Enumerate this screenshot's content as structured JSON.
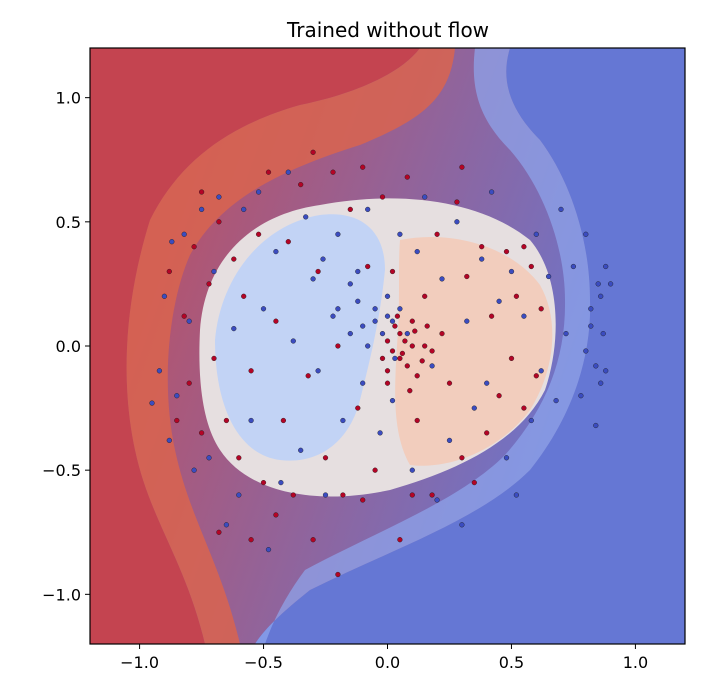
{
  "chart_data": {
    "type": "scatter",
    "title": "Trained without flow",
    "xlabel": "",
    "ylabel": "",
    "xlim": [
      -1.2,
      1.2
    ],
    "ylim": [
      -1.2,
      1.2
    ],
    "grid": false,
    "legend": "none",
    "x_ticks": [
      -1.0,
      -0.5,
      0.0,
      0.5,
      1.0
    ],
    "x_tick_labels": [
      "−1.0",
      "−0.5",
      "0.0",
      "0.5",
      "1.0"
    ],
    "y_ticks": [
      -1.0,
      -0.5,
      0.0,
      0.5,
      1.0
    ],
    "y_tick_labels": [
      "−1.0",
      "−0.5",
      "0.0",
      "0.5",
      "1.0"
    ],
    "background": {
      "kind": "filled-contour",
      "colormap": "coolwarm",
      "alpha": 0.8,
      "description": "decision probability surface: red region on left / upper-left, blue region on right / lower-right"
    },
    "series": [
      {
        "class": 0,
        "color": "#3b4cc0",
        "points": [
          [
            -0.95,
            -0.23
          ],
          [
            -0.92,
            -0.1
          ],
          [
            -0.9,
            0.2
          ],
          [
            -0.88,
            -0.38
          ],
          [
            -0.87,
            0.42
          ],
          [
            -0.85,
            -0.2
          ],
          [
            -0.82,
            0.45
          ],
          [
            -0.8,
            0.1
          ],
          [
            -0.78,
            -0.5
          ],
          [
            -0.75,
            0.55
          ],
          [
            -0.72,
            -0.45
          ],
          [
            -0.7,
            0.3
          ],
          [
            -0.68,
            0.6
          ],
          [
            -0.65,
            -0.72
          ],
          [
            -0.62,
            0.07
          ],
          [
            -0.6,
            -0.6
          ],
          [
            -0.58,
            0.55
          ],
          [
            -0.55,
            -0.3
          ],
          [
            -0.52,
            0.62
          ],
          [
            -0.5,
            0.15
          ],
          [
            -0.48,
            -0.82
          ],
          [
            -0.45,
            0.38
          ],
          [
            -0.43,
            -0.55
          ],
          [
            -0.4,
            0.7
          ],
          [
            -0.38,
            0.02
          ],
          [
            -0.35,
            -0.42
          ],
          [
            -0.33,
            0.52
          ],
          [
            -0.3,
            0.27
          ],
          [
            -0.28,
            -0.1
          ],
          [
            -0.26,
            0.35
          ],
          [
            -0.25,
            -0.6
          ],
          [
            -0.22,
            0.12
          ],
          [
            -0.2,
            0.45
          ],
          [
            -0.18,
            -0.3
          ],
          [
            -0.15,
            0.05
          ],
          [
            -0.12,
            0.3
          ],
          [
            -0.1,
            -0.15
          ],
          [
            -0.08,
            0.55
          ],
          [
            -0.05,
            0.1
          ],
          [
            -0.03,
            -0.35
          ],
          [
            0.0,
            0.2
          ],
          [
            0.02,
            -0.22
          ],
          [
            0.05,
            0.45
          ],
          [
            0.08,
            0.05
          ],
          [
            0.1,
            -0.5
          ],
          [
            0.12,
            0.38
          ],
          [
            0.15,
            0.6
          ],
          [
            0.18,
            -0.08
          ],
          [
            0.2,
            -0.62
          ],
          [
            0.22,
            0.27
          ],
          [
            0.25,
            -0.38
          ],
          [
            0.28,
            0.5
          ],
          [
            0.3,
            -0.72
          ],
          [
            0.32,
            0.1
          ],
          [
            0.35,
            -0.25
          ],
          [
            0.38,
            0.35
          ],
          [
            0.4,
            -0.15
          ],
          [
            0.42,
            0.62
          ],
          [
            0.45,
            0.18
          ],
          [
            0.48,
            -0.45
          ],
          [
            0.5,
            0.3
          ],
          [
            0.52,
            -0.6
          ],
          [
            0.55,
            0.12
          ],
          [
            0.58,
            -0.3
          ],
          [
            0.6,
            0.45
          ],
          [
            0.62,
            -0.1
          ],
          [
            0.65,
            0.28
          ],
          [
            0.68,
            -0.22
          ],
          [
            0.7,
            0.55
          ],
          [
            0.72,
            0.05
          ],
          [
            0.75,
            0.32
          ],
          [
            0.78,
            -0.2
          ],
          [
            0.8,
            0.45
          ],
          [
            0.82,
            0.15
          ],
          [
            0.84,
            -0.08
          ],
          [
            0.86,
            0.2
          ],
          [
            0.88,
            -0.1
          ],
          [
            0.9,
            0.25
          ],
          [
            0.88,
            0.32
          ],
          [
            0.87,
            0.05
          ],
          [
            0.85,
            0.25
          ],
          [
            0.86,
            -0.15
          ],
          [
            0.84,
            -0.32
          ],
          [
            0.82,
            0.08
          ],
          [
            0.8,
            -0.02
          ],
          [
            -0.2,
            0.15
          ],
          [
            -0.15,
            0.25
          ],
          [
            -0.1,
            0.08
          ],
          [
            -0.05,
            0.15
          ],
          [
            0.02,
            0.1
          ],
          [
            0.05,
            0.15
          ],
          [
            0.0,
            0.12
          ],
          [
            -0.08,
            0.0
          ],
          [
            -0.12,
            0.18
          ],
          [
            0.03,
            -0.05
          ],
          [
            -0.02,
            0.05
          ]
        ]
      },
      {
        "class": 1,
        "color": "#b40426",
        "points": [
          [
            -0.82,
            0.12
          ],
          [
            -0.8,
            -0.15
          ],
          [
            -0.78,
            0.4
          ],
          [
            -0.75,
            -0.35
          ],
          [
            -0.72,
            0.25
          ],
          [
            -0.7,
            -0.05
          ],
          [
            -0.68,
            0.5
          ],
          [
            -0.65,
            -0.3
          ],
          [
            -0.62,
            0.35
          ],
          [
            -0.6,
            -0.45
          ],
          [
            -0.58,
            0.2
          ],
          [
            -0.55,
            -0.1
          ],
          [
            -0.52,
            0.45
          ],
          [
            -0.5,
            -0.55
          ],
          [
            -0.48,
            0.7
          ],
          [
            -0.45,
            0.1
          ],
          [
            -0.42,
            -0.3
          ],
          [
            -0.4,
            0.42
          ],
          [
            -0.38,
            -0.6
          ],
          [
            -0.35,
            0.65
          ],
          [
            -0.32,
            -0.12
          ],
          [
            -0.3,
            0.78
          ],
          [
            -0.28,
            0.3
          ],
          [
            -0.25,
            -0.45
          ],
          [
            -0.22,
            0.7
          ],
          [
            -0.2,
            0.0
          ],
          [
            -0.18,
            -0.6
          ],
          [
            -0.15,
            0.55
          ],
          [
            -0.12,
            -0.25
          ],
          [
            -0.1,
            0.72
          ],
          [
            -0.08,
            0.32
          ],
          [
            -0.05,
            -0.5
          ],
          [
            -0.02,
            0.6
          ],
          [
            0.0,
            -0.1
          ],
          [
            0.02,
            0.3
          ],
          [
            0.05,
            -0.05
          ],
          [
            0.08,
            0.68
          ],
          [
            0.1,
            0.0
          ],
          [
            0.12,
            -0.3
          ],
          [
            0.15,
            0.2
          ],
          [
            0.18,
            -0.6
          ],
          [
            0.2,
            0.45
          ],
          [
            0.22,
            0.05
          ],
          [
            0.25,
            -0.15
          ],
          [
            0.28,
            0.58
          ],
          [
            0.3,
            -0.45
          ],
          [
            0.32,
            0.28
          ],
          [
            0.35,
            -0.55
          ],
          [
            0.38,
            0.4
          ],
          [
            0.4,
            -0.35
          ],
          [
            0.42,
            0.12
          ],
          [
            0.45,
            -0.2
          ],
          [
            0.48,
            0.38
          ],
          [
            0.5,
            -0.05
          ],
          [
            0.52,
            0.2
          ],
          [
            0.55,
            -0.25
          ],
          [
            0.58,
            0.32
          ],
          [
            0.6,
            -0.12
          ],
          [
            0.62,
            0.15
          ],
          [
            0.0,
            0.02
          ],
          [
            0.02,
            -0.02
          ],
          [
            0.05,
            0.05
          ],
          [
            0.08,
            -0.08
          ],
          [
            0.1,
            0.1
          ],
          [
            0.12,
            -0.12
          ],
          [
            0.15,
            0.0
          ],
          [
            0.03,
            0.08
          ],
          [
            0.06,
            -0.03
          ],
          [
            -0.02,
            -0.05
          ],
          [
            0.0,
            -0.15
          ],
          [
            0.04,
            0.12
          ],
          [
            0.07,
            0.02
          ],
          [
            0.09,
            -0.18
          ],
          [
            0.11,
            0.06
          ],
          [
            0.14,
            -0.06
          ],
          [
            0.16,
            0.08
          ],
          [
            0.18,
            -0.02
          ],
          [
            -0.68,
            -0.75
          ],
          [
            -0.55,
            -0.78
          ],
          [
            -0.45,
            -0.68
          ],
          [
            -0.3,
            -0.78
          ],
          [
            -0.2,
            -0.92
          ],
          [
            -0.1,
            -0.62
          ],
          [
            0.05,
            -0.78
          ],
          [
            0.1,
            -0.6
          ],
          [
            -0.88,
            0.3
          ],
          [
            -0.85,
            -0.3
          ],
          [
            -0.75,
            0.62
          ],
          [
            0.3,
            0.72
          ],
          [
            0.55,
            0.4
          ]
        ]
      }
    ]
  }
}
